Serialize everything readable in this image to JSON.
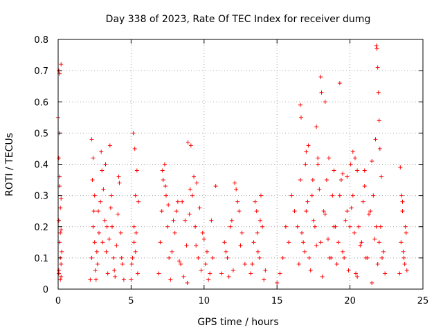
{
  "chart_data": {
    "type": "scatter",
    "title": "Day 338 of 2023, Rate Of TEC Index for receiver dumg",
    "xlabel": "GPS time / hours",
    "ylabel": "ROTI / TECUs",
    "xlim": [
      0,
      25
    ],
    "ylim": [
      0,
      0.8
    ],
    "x_ticks": [
      0,
      5,
      10,
      15,
      20,
      25
    ],
    "y_ticks": [
      0,
      0.1,
      0.2,
      0.3,
      0.4,
      0.5,
      0.6,
      0.7,
      0.8
    ],
    "x_tick_labels": [
      "0",
      "5",
      "10",
      "15",
      "20",
      "25"
    ],
    "y_tick_labels": [
      "0",
      "0.1",
      "0.2",
      "0.3",
      "0.4",
      "0.5",
      "0.6",
      "0.7",
      "0.8"
    ],
    "grid": true,
    "marker": "+",
    "color": "#ff0000",
    "series": [
      {
        "x": [
          0.0,
          0.05,
          0.1,
          0.15,
          0.2,
          0.25,
          0.05,
          0.15,
          0.2,
          0.1,
          0.05,
          0.2,
          0.1,
          0.15,
          0.05,
          0.2,
          0.1,
          0.15,
          0.05,
          0.2,
          0.1,
          2.2,
          2.3,
          2.4,
          2.5,
          2.3,
          2.4,
          2.35,
          2.45,
          2.5,
          2.55,
          2.6,
          2.7,
          2.8,
          2.9,
          3.0,
          3.1,
          3.2,
          3.3,
          3.4,
          3.5,
          3.6,
          3.7,
          3.8,
          3.9,
          4.0,
          4.1,
          4.2,
          4.3,
          4.4,
          4.5,
          3.55,
          2.95,
          3.25,
          3.65,
          4.15,
          2.65,
          3.85,
          4.35,
          3.05,
          2.75,
          3.35,
          5.0,
          5.1,
          5.2,
          5.3,
          5.4,
          5.5,
          5.15,
          5.25,
          5.35,
          5.05,
          5.45,
          5.2,
          5.3,
          6.9,
          7.0,
          7.1,
          7.2,
          7.3,
          7.4,
          7.5,
          7.6,
          7.7,
          7.8,
          7.9,
          8.0,
          8.2,
          8.4,
          8.6,
          8.8,
          9.0,
          9.2,
          9.4,
          9.6,
          9.8,
          10.0,
          10.2,
          10.4,
          10.6,
          8.9,
          9.1,
          9.3,
          9.5,
          9.7,
          9.9,
          10.1,
          10.3,
          8.5,
          8.7,
          9.05,
          7.15,
          7.35,
          7.55,
          8.1,
          8.3,
          8.85,
          9.45,
          10.5,
          10.8,
          11.2,
          11.4,
          11.6,
          11.8,
          12.0,
          12.2,
          12.4,
          12.6,
          12.8,
          11.5,
          11.9,
          12.3,
          12.5,
          12.1,
          11.7,
          13.2,
          13.4,
          13.6,
          13.8,
          14.0,
          14.2,
          13.5,
          13.7,
          13.9,
          14.1,
          13.3,
          13.65,
          13.85,
          15.0,
          15.2,
          15.4,
          15.6,
          15.8,
          16.0,
          16.2,
          16.4,
          16.6,
          16.8,
          17.0,
          17.2,
          17.4,
          17.6,
          17.8,
          18.0,
          18.2,
          18.4,
          18.6,
          18.8,
          19.0,
          19.2,
          19.4,
          19.6,
          19.8,
          20.0,
          20.2,
          20.4,
          20.6,
          20.8,
          21.0,
          21.2,
          21.4,
          21.6,
          21.8,
          22.0,
          22.2,
          22.4,
          16.5,
          16.7,
          16.9,
          17.1,
          17.3,
          17.5,
          17.7,
          17.9,
          18.1,
          18.3,
          18.5,
          18.7,
          18.9,
          19.1,
          19.3,
          19.5,
          19.7,
          19.9,
          20.1,
          20.3,
          20.5,
          20.7,
          20.9,
          21.1,
          21.3,
          21.5,
          21.7,
          21.9,
          22.1,
          22.3,
          16.6,
          17.0,
          17.7,
          17.8,
          18.0,
          18.3,
          18.9,
          19.3,
          19.5,
          19.8,
          20.2,
          20.5,
          21.0,
          21.5,
          21.8,
          21.85,
          21.9,
          21.95,
          22.0,
          21.75,
          16.65,
          17.15,
          17.45,
          16.95,
          18.05,
          18.55,
          20.05,
          20.35,
          22.05,
          22.15,
          23.4,
          23.5,
          23.6,
          23.7,
          23.8,
          23.9,
          23.55,
          23.65,
          23.75,
          23.45,
          23.85,
          23.6
        ],
        "y": [
          0.55,
          0.42,
          0.33,
          0.26,
          0.19,
          0.12,
          0.06,
          0.03,
          0.08,
          0.15,
          0.22,
          0.29,
          0.36,
          0.1,
          0.05,
          0.04,
          0.5,
          0.18,
          0.7,
          0.72,
          0.69,
          0.03,
          0.1,
          0.2,
          0.3,
          0.48,
          0.42,
          0.35,
          0.25,
          0.15,
          0.06,
          0.03,
          0.08,
          0.18,
          0.28,
          0.38,
          0.32,
          0.22,
          0.12,
          0.05,
          0.16,
          0.26,
          0.2,
          0.1,
          0.04,
          0.14,
          0.24,
          0.34,
          0.18,
          0.08,
          0.03,
          0.46,
          0.44,
          0.4,
          0.3,
          0.36,
          0.12,
          0.06,
          0.1,
          0.15,
          0.25,
          0.2,
          0.03,
          0.1,
          0.2,
          0.3,
          0.38,
          0.28,
          0.5,
          0.45,
          0.18,
          0.08,
          0.05,
          0.15,
          0.12,
          0.05,
          0.15,
          0.25,
          0.35,
          0.4,
          0.3,
          0.2,
          0.1,
          0.03,
          0.12,
          0.22,
          0.18,
          0.28,
          0.08,
          0.04,
          0.14,
          0.24,
          0.3,
          0.2,
          0.1,
          0.06,
          0.16,
          0.12,
          0.05,
          0.1,
          0.47,
          0.46,
          0.36,
          0.34,
          0.26,
          0.18,
          0.08,
          0.03,
          0.28,
          0.22,
          0.32,
          0.38,
          0.33,
          0.27,
          0.25,
          0.09,
          0.02,
          0.14,
          0.22,
          0.33,
          0.05,
          0.15,
          0.1,
          0.2,
          0.06,
          0.32,
          0.25,
          0.18,
          0.08,
          0.12,
          0.22,
          0.28,
          0.14,
          0.34,
          0.04,
          0.05,
          0.15,
          0.25,
          0.1,
          0.2,
          0.06,
          0.28,
          0.12,
          0.3,
          0.03,
          0.08,
          0.18,
          0.22,
          0.02,
          0.05,
          0.1,
          0.2,
          0.15,
          0.3,
          0.25,
          0.2,
          0.35,
          0.15,
          0.25,
          0.1,
          0.3,
          0.2,
          0.4,
          0.15,
          0.25,
          0.35,
          0.1,
          0.3,
          0.2,
          0.15,
          0.35,
          0.1,
          0.25,
          0.2,
          0.3,
          0.05,
          0.2,
          0.15,
          0.38,
          0.1,
          0.25,
          0.3,
          0.2,
          0.15,
          0.1,
          0.05,
          0.08,
          0.18,
          0.12,
          0.28,
          0.06,
          0.22,
          0.14,
          0.32,
          0.04,
          0.24,
          0.16,
          0.1,
          0.2,
          0.08,
          0.3,
          0.12,
          0.22,
          0.06,
          0.26,
          0.18,
          0.04,
          0.14,
          0.28,
          0.1,
          0.24,
          0.02,
          0.16,
          0.08,
          0.2,
          0.12,
          0.59,
          0.44,
          0.52,
          0.42,
          0.68,
          0.6,
          0.38,
          0.66,
          0.37,
          0.36,
          0.44,
          0.38,
          0.33,
          0.41,
          0.78,
          0.77,
          0.71,
          0.63,
          0.54,
          0.48,
          0.55,
          0.46,
          0.35,
          0.4,
          0.63,
          0.42,
          0.4,
          0.42,
          0.45,
          0.36,
          0.05,
          0.15,
          0.25,
          0.1,
          0.2,
          0.06,
          0.3,
          0.12,
          0.08,
          0.39,
          0.18,
          0.28
        ]
      }
    ]
  }
}
